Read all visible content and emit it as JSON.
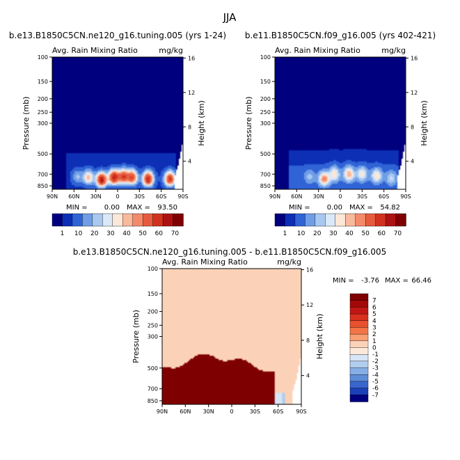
{
  "page_title": "JJA",
  "chart_data": [
    {
      "type": "heatmap",
      "panel": "top-left",
      "title": "b.e13.B1850C5CN.ne120_g16.tuning.005 (yrs 1-24)",
      "variable": "Avg. Rain Mixing Ratio",
      "units": "mg/kg",
      "xlabel": "",
      "ylabel": "Pressure (mb)",
      "y2label": "Height (km)",
      "x_ticks": [
        "90N",
        "60N",
        "30N",
        "0",
        "30S",
        "60S",
        "90S"
      ],
      "y_ticks": [
        "100",
        "150",
        "200",
        "250",
        "300",
        "500",
        "700",
        "850"
      ],
      "y2_ticks": [
        "16",
        "12",
        "8",
        "4"
      ],
      "stats": {
        "min_label": "MIN =",
        "min": "0.00",
        "max_label": "MAX =",
        "max": "93.50"
      },
      "colorbar_labels": [
        "1",
        "10",
        "20",
        "30",
        "40",
        "50",
        "60",
        "70"
      ],
      "colorbar_colors": [
        "#00007f",
        "#0d2fb5",
        "#2f63d6",
        "#6f9ee6",
        "#a9c8f0",
        "#dbe8f8",
        "#fde7d6",
        "#f9b99c",
        "#f48a6a",
        "#e65b3e",
        "#d0321f",
        "#ad1212",
        "#7f0000"
      ],
      "features": [
        {
          "lat": -72,
          "p": 760,
          "value": 50
        },
        {
          "lat": -42,
          "p": 760,
          "value": 55
        },
        {
          "lat": -20,
          "p": 740,
          "value": 45
        },
        {
          "lat": -8,
          "p": 730,
          "value": 45
        },
        {
          "lat": 5,
          "p": 740,
          "value": 55
        },
        {
          "lat": 22,
          "p": 770,
          "value": 60
        },
        {
          "lat": 40,
          "p": 740,
          "value": 28
        },
        {
          "lat": 55,
          "p": 730,
          "value": 12
        }
      ]
    },
    {
      "type": "heatmap",
      "panel": "top-right",
      "title": "b.e11.B1850C5CN.f09_g16.005 (yrs 402-421)",
      "variable": "Avg. Rain Mixing Ratio",
      "units": "mg/kg",
      "xlabel": "",
      "ylabel": "Pressure (mb)",
      "y2label": "Height (km)",
      "x_ticks": [
        "90N",
        "60N",
        "30N",
        "0",
        "30S",
        "60S",
        "90S"
      ],
      "y_ticks": [
        "100",
        "150",
        "200",
        "250",
        "300",
        "500",
        "700",
        "850"
      ],
      "y2_ticks": [
        "16",
        "12",
        "8",
        "4"
      ],
      "stats": {
        "min_label": "MIN =",
        "min": "0.00",
        "max_label": "MAX =",
        "max": "54.82"
      },
      "colorbar_labels": [
        "1",
        "10",
        "20",
        "30",
        "40",
        "50",
        "60",
        "70"
      ],
      "colorbar_colors": [
        "#00007f",
        "#0d2fb5",
        "#2f63d6",
        "#6f9ee6",
        "#a9c8f0",
        "#dbe8f8",
        "#fde7d6",
        "#f9b99c",
        "#f48a6a",
        "#e65b3e",
        "#d0321f",
        "#ad1212",
        "#7f0000"
      ],
      "features": [
        {
          "lat": -70,
          "p": 750,
          "value": 14
        },
        {
          "lat": -50,
          "p": 720,
          "value": 22
        },
        {
          "lat": -30,
          "p": 700,
          "value": 20
        },
        {
          "lat": -12,
          "p": 700,
          "value": 28
        },
        {
          "lat": 8,
          "p": 700,
          "value": 22
        },
        {
          "lat": 22,
          "p": 760,
          "value": 32
        },
        {
          "lat": 42,
          "p": 730,
          "value": 10
        }
      ]
    },
    {
      "type": "heatmap",
      "panel": "bottom",
      "title": "b.e13.B1850C5CN.ne120_g16.tuning.005 - b.e11.B1850C5CN.f09_g16.005",
      "variable": "Avg. Rain Mixing Ratio",
      "units": "mg/kg",
      "xlabel": "",
      "ylabel": "Pressure (mb)",
      "y2label": "Height (km)",
      "x_ticks": [
        "90N",
        "60N",
        "30N",
        "0",
        "30S",
        "60S",
        "90S"
      ],
      "y_ticks": [
        "100",
        "150",
        "200",
        "250",
        "300",
        "500",
        "700",
        "850"
      ],
      "y2_ticks": [
        "16",
        "12",
        "8",
        "4"
      ],
      "stats": {
        "min_label": "MIN =",
        "min": "-3.76",
        "max_label": "MAX =",
        "max": "66.46"
      },
      "colorbar_labels": [
        "7",
        "6",
        "5",
        "4",
        "3",
        "2",
        "1",
        "0",
        "-1",
        "-2",
        "-3",
        "-4",
        "-5",
        "-6",
        "-7"
      ],
      "colorbar_colors": [
        "#7f0000",
        "#a30808",
        "#c21616",
        "#d8301e",
        "#e8502f",
        "#f47448",
        "#f99f74",
        "#fbd2b8",
        "#fde9d9",
        "#d7e5f6",
        "#b0cdee",
        "#87aee4",
        "#5d8cd8",
        "#3966cc",
        "#1b3fb6",
        "#00007f"
      ],
      "positive_region": {
        "lat_north": 90,
        "lat_south": -55,
        "top_p": 400,
        "value": 7
      }
    }
  ]
}
